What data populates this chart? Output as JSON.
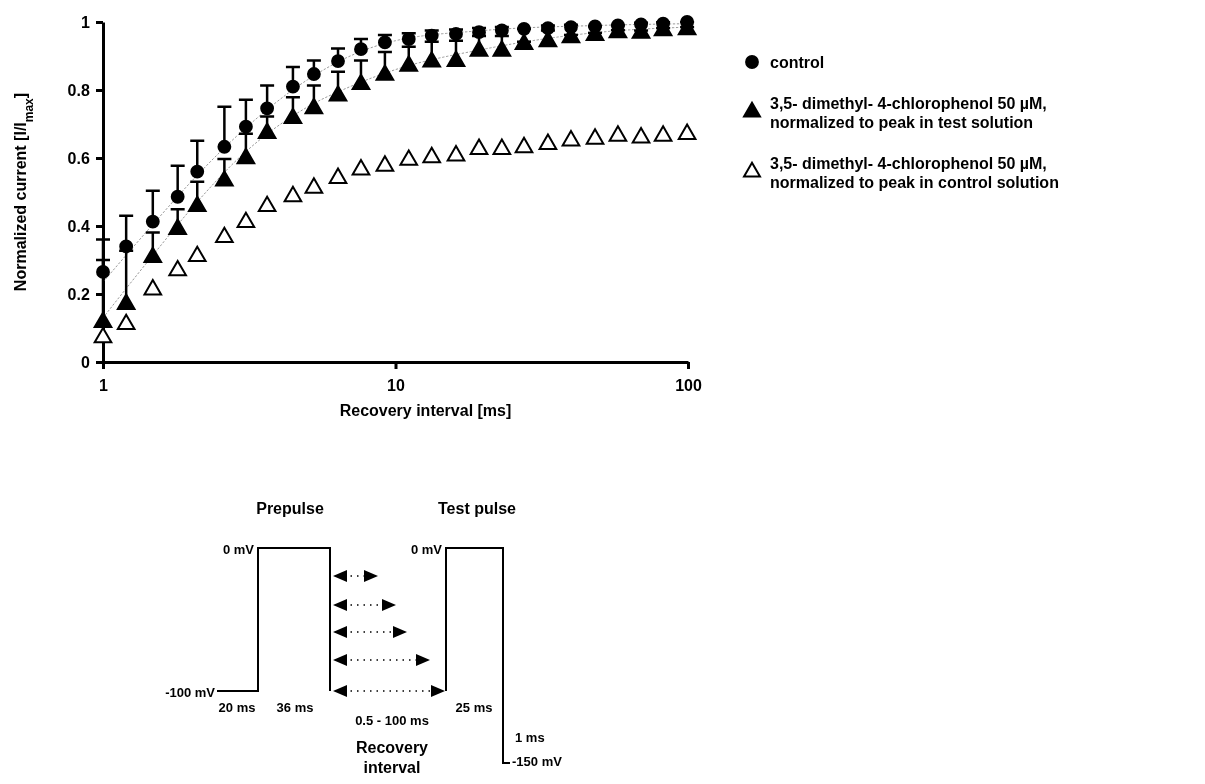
{
  "chart_data": {
    "type": "scatter",
    "xlabel": "Recovery interval [ms]",
    "ylabel": "Normalized current [I/I$_{max}$]",
    "log": "x",
    "xlim": [
      1,
      100
    ],
    "xticks": [
      1,
      10,
      100
    ],
    "ylim": [
      0,
      1
    ],
    "yticks": [
      0,
      0.2,
      0.4,
      0.6,
      0.8,
      1
    ],
    "grid": false,
    "legend": "right",
    "series": [
      {
        "name": "control",
        "color": "#000000",
        "marker": "circle",
        "x": [
          1,
          1.2,
          1.48,
          1.8,
          2.1,
          2.6,
          3.08,
          3.64,
          4.46,
          5.26,
          6.36,
          7.62,
          9.2,
          11.1,
          13.3,
          16.1,
          19.3,
          23.1,
          27.5,
          33.2,
          39.8,
          48.1,
          57.6,
          69.1,
          82.2,
          99.3
        ],
        "values": [
          0.265,
          0.34,
          0.413,
          0.486,
          0.56,
          0.633,
          0.692,
          0.746,
          0.81,
          0.847,
          0.885,
          0.92,
          0.94,
          0.95,
          0.96,
          0.965,
          0.97,
          0.975,
          0.98,
          0.982,
          0.985,
          0.987,
          0.99,
          0.993,
          0.995,
          1.0
        ],
        "errors": [
          [
            0.265,
            0.36
          ],
          [
            0.34,
            0.43
          ],
          [
            0.413,
            0.504
          ],
          [
            0.486,
            0.577
          ],
          [
            0.56,
            0.651
          ],
          [
            0.633,
            0.751
          ],
          [
            0.692,
            0.771
          ],
          [
            0.746,
            0.813
          ],
          [
            0.81,
            0.868
          ],
          [
            0.847,
            0.887
          ],
          [
            0.885,
            0.922
          ],
          [
            0.92,
            0.95
          ],
          [
            0.94,
            0.962
          ],
          [
            0.95,
            0.967
          ],
          [
            0.96,
            0.975
          ],
          [
            0.965,
            0.978
          ],
          [
            0.97,
            0.982
          ],
          [
            0.975,
            0.985
          ],
          [
            0.98,
            0.98
          ],
          [
            0.982,
            0.99
          ],
          [
            0.985,
            0.992
          ],
          [
            0.987,
            0.987
          ],
          [
            0.99,
            0.99
          ],
          [
            0.993,
            0.998
          ],
          [
            0.995,
            0.999
          ],
          [
            1.0,
            1.0
          ]
        ]
      },
      {
        "name": "3,5- dimethyl- 4-chlorophenol 50 µM, normalized to peak in test solution",
        "color": "#000000",
        "marker": "triangle",
        "x": [
          1,
          1.2,
          1.48,
          1.8,
          2.1,
          2.6,
          3.08,
          3.64,
          4.46,
          5.26,
          6.36,
          7.62,
          9.2,
          11.1,
          13.3,
          16.1,
          19.3,
          23.1,
          27.5,
          33.2,
          39.8,
          48.1,
          57.6,
          69.1,
          82.2,
          99.3
        ],
        "values": [
          0.124,
          0.177,
          0.315,
          0.398,
          0.465,
          0.54,
          0.606,
          0.68,
          0.724,
          0.753,
          0.79,
          0.824,
          0.851,
          0.878,
          0.89,
          0.892,
          0.922,
          0.922,
          0.942,
          0.95,
          0.962,
          0.968,
          0.976,
          0.975,
          0.982,
          0.985
        ],
        "errors": [
          [
            0.124,
            0.3
          ],
          [
            0.177,
            0.327
          ],
          [
            0.315,
            0.381
          ],
          [
            0.398,
            0.449
          ],
          [
            0.465,
            0.53
          ],
          [
            0.54,
            0.597
          ],
          [
            0.606,
            0.671
          ],
          [
            0.68,
            0.722
          ],
          [
            0.724,
            0.779
          ],
          [
            0.753,
            0.813
          ],
          [
            0.79,
            0.854
          ],
          [
            0.824,
            0.887
          ],
          [
            0.851,
            0.912
          ],
          [
            0.878,
            0.927
          ],
          [
            0.89,
            0.942
          ],
          [
            0.892,
            0.945
          ],
          [
            0.922,
            0.959
          ],
          [
            0.922,
            0.959
          ],
          [
            0.942,
            0.942
          ],
          [
            0.95,
            0.975
          ],
          [
            0.962,
            0.962
          ],
          [
            0.968,
            0.968
          ],
          [
            0.976,
            0.976
          ],
          [
            0.975,
            0.975
          ],
          [
            0.982,
            0.982
          ],
          [
            0.985,
            0.985
          ]
        ]
      },
      {
        "name": "3,5- dimethyl- 4-chlorophenol 50 µM, normalized to peak in control solution",
        "color": "#ffffff",
        "marker": "triangle",
        "x": [
          1,
          1.2,
          1.48,
          1.8,
          2.1,
          2.6,
          3.08,
          3.64,
          4.46,
          5.26,
          6.36,
          7.62,
          9.2,
          11.1,
          13.3,
          16.1,
          19.3,
          23.1,
          27.5,
          33.2,
          39.8,
          48.1,
          57.6,
          69.1,
          82.2,
          99.3
        ],
        "values": [
          0.079,
          0.118,
          0.22,
          0.276,
          0.318,
          0.374,
          0.418,
          0.465,
          0.494,
          0.519,
          0.548,
          0.573,
          0.584,
          0.601,
          0.609,
          0.614,
          0.633,
          0.633,
          0.638,
          0.648,
          0.658,
          0.663,
          0.672,
          0.667,
          0.672,
          0.677
        ]
      },
      {
        "type": "line",
        "color": "#999999",
        "line_style": "dotted",
        "marker": "none",
        "x": [
          1,
          1.5,
          2,
          3,
          5,
          7,
          10,
          20,
          50,
          100
        ],
        "values": [
          0.235,
          0.41,
          0.53,
          0.68,
          0.83,
          0.9,
          0.945,
          0.975,
          0.99,
          0.995
        ]
      },
      {
        "type": "line",
        "color": "#999999",
        "line_style": "dotted",
        "marker": "none",
        "x": [
          1,
          1.5,
          2,
          3,
          5,
          7,
          10,
          20,
          50,
          100
        ],
        "values": [
          0.13,
          0.32,
          0.45,
          0.61,
          0.75,
          0.81,
          0.86,
          0.92,
          0.97,
          0.985
        ]
      }
    ],
    "annotations": [
      "Prepulse",
      "Test pulse",
      "0 mV",
      "0 mV",
      "-100 mV",
      "20 ms",
      "36 ms",
      "0.5 - 100 ms",
      "25 ms",
      "1 ms",
      "-150 mV",
      "Recovery interval"
    ]
  }
}
